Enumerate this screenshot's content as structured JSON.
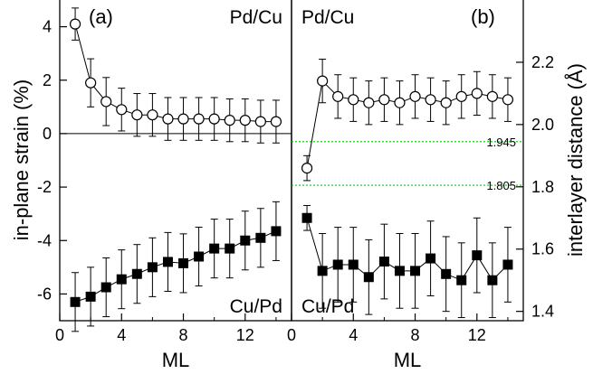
{
  "chart_data": [
    {
      "type": "scatter",
      "panel_label": "(a)",
      "xlabel": "ML",
      "ylabel": "in-plane strain (%)",
      "xlim": [
        0,
        15
      ],
      "ylim": [
        -7,
        5
      ],
      "xticks": [
        0,
        4,
        8,
        12
      ],
      "yticks": [
        -6,
        -4,
        -2,
        0,
        2,
        4
      ],
      "zero_line": true,
      "series": [
        {
          "name": "Pd/Cu",
          "marker": "open-circle",
          "x": [
            1,
            2,
            3,
            4,
            5,
            6,
            7,
            8,
            9,
            10,
            11,
            12,
            13,
            14
          ],
          "y": [
            4.1,
            1.9,
            1.2,
            0.9,
            0.7,
            0.7,
            0.55,
            0.55,
            0.55,
            0.55,
            0.5,
            0.5,
            0.45,
            0.45
          ],
          "err": [
            0.6,
            0.9,
            0.9,
            0.8,
            0.8,
            0.8,
            0.8,
            0.8,
            0.8,
            0.8,
            0.8,
            0.8,
            0.8,
            0.8
          ]
        },
        {
          "name": "Cu/Pd",
          "marker": "filled-square",
          "x": [
            1,
            2,
            3,
            4,
            5,
            6,
            7,
            8,
            9,
            10,
            11,
            12,
            13,
            14
          ],
          "y": [
            -6.3,
            -6.1,
            -5.75,
            -5.45,
            -5.25,
            -5.0,
            -4.8,
            -4.85,
            -4.6,
            -4.3,
            -4.3,
            -4.0,
            -3.9,
            -3.65
          ],
          "err": [
            1.1,
            1.1,
            1.1,
            1.1,
            1.1,
            1.1,
            1.1,
            1.1,
            1.1,
            1.1,
            1.1,
            1.1,
            1.1,
            1.1
          ]
        }
      ]
    },
    {
      "type": "scatter",
      "panel_label": "(b)",
      "xlabel": "ML",
      "ylabel": "interlayer distance (Å)",
      "xlim": [
        0,
        15
      ],
      "ylim": [
        1.37,
        2.4
      ],
      "xticks": [
        0,
        4,
        8,
        12
      ],
      "yticks": [
        1.4,
        1.6,
        1.8,
        2.0,
        2.2
      ],
      "reference_lines": [
        {
          "value": 1.945,
          "label": "1.945",
          "color": "#00cc00"
        },
        {
          "value": 1.805,
          "label": "1.805",
          "color": "#00cc00"
        }
      ],
      "series": [
        {
          "name": "Pd/Cu",
          "marker": "open-circle",
          "x": [
            1,
            2,
            3,
            4,
            5,
            6,
            7,
            8,
            9,
            10,
            11,
            12,
            13,
            14
          ],
          "y": [
            1.86,
            2.14,
            2.09,
            2.08,
            2.07,
            2.08,
            2.07,
            2.09,
            2.08,
            2.07,
            2.09,
            2.1,
            2.09,
            2.08
          ],
          "err": [
            0.04,
            0.07,
            0.07,
            0.07,
            0.07,
            0.07,
            0.07,
            0.07,
            0.07,
            0.07,
            0.07,
            0.07,
            0.07,
            0.07
          ]
        },
        {
          "name": "Cu/Pd",
          "marker": "filled-square",
          "x": [
            1,
            2,
            3,
            4,
            5,
            6,
            7,
            8,
            9,
            10,
            11,
            12,
            13,
            14
          ],
          "y": [
            1.7,
            1.53,
            1.55,
            1.55,
            1.51,
            1.56,
            1.53,
            1.53,
            1.57,
            1.52,
            1.5,
            1.58,
            1.5,
            1.55
          ],
          "err": [
            0.04,
            0.12,
            0.12,
            0.12,
            0.12,
            0.12,
            0.12,
            0.12,
            0.12,
            0.12,
            0.12,
            0.12,
            0.12,
            0.12
          ]
        }
      ]
    }
  ]
}
